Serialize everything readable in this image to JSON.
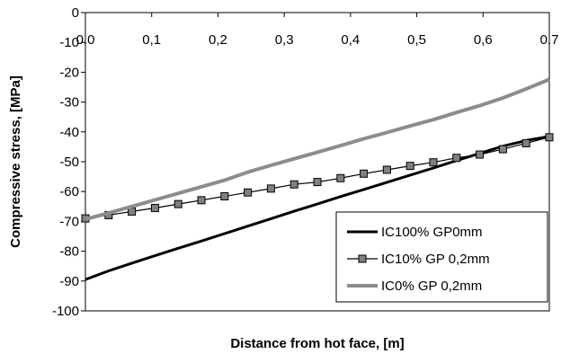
{
  "chart_data": {
    "type": "line",
    "title": "",
    "xlabel": "Distance from hot face, [m]",
    "ylabel": "Compressive stress, [MPa]",
    "xlim": [
      0,
      0.7
    ],
    "ylim": [
      -100,
      0
    ],
    "x_ticks": [
      "0,0",
      "0,1",
      "0,2",
      "0,3",
      "0,4",
      "0,5",
      "0,6",
      "0,7"
    ],
    "y_ticks": [
      "0",
      "-10",
      "-20",
      "-30",
      "-40",
      "-50",
      "-60",
      "-70",
      "-80",
      "-90",
      "-100"
    ],
    "grid": false,
    "legend_position": "bottom-right",
    "series": [
      {
        "name": "IC100% GP0mm",
        "color": "#000000",
        "marker": "none",
        "x": [
          0.0,
          0.035,
          0.07,
          0.105,
          0.14,
          0.175,
          0.21,
          0.245,
          0.28,
          0.315,
          0.35,
          0.385,
          0.42,
          0.455,
          0.49,
          0.525,
          0.56,
          0.595,
          0.63,
          0.665,
          0.7
        ],
        "y": [
          -89.5,
          -86.6,
          -84.0,
          -81.5,
          -79.0,
          -76.6,
          -74.1,
          -71.6,
          -69.1,
          -66.6,
          -64.2,
          -61.7,
          -59.3,
          -56.9,
          -54.5,
          -52.1,
          -49.6,
          -47.2,
          -44.8,
          -42.9,
          -41.5
        ]
      },
      {
        "name": "IC10% GP 0,2mm",
        "color": "#000000",
        "marker": "square",
        "marker_color": "#808080",
        "x": [
          0.0,
          0.035,
          0.07,
          0.105,
          0.14,
          0.175,
          0.21,
          0.245,
          0.28,
          0.315,
          0.35,
          0.385,
          0.42,
          0.455,
          0.49,
          0.525,
          0.56,
          0.595,
          0.63,
          0.665,
          0.7
        ],
        "y": [
          -69.0,
          -67.9,
          -66.7,
          -65.5,
          -64.2,
          -62.9,
          -61.6,
          -60.3,
          -59.0,
          -57.6,
          -56.8,
          -55.5,
          -54.0,
          -52.7,
          -51.4,
          -50.2,
          -48.7,
          -47.6,
          -45.8,
          -43.8,
          -41.8
        ]
      },
      {
        "name": "IC0% GP 0,2mm",
        "color": "#8c8c8c",
        "marker": "none",
        "x": [
          0.0,
          0.035,
          0.07,
          0.105,
          0.14,
          0.175,
          0.21,
          0.245,
          0.28,
          0.315,
          0.35,
          0.385,
          0.42,
          0.455,
          0.49,
          0.525,
          0.56,
          0.595,
          0.63,
          0.665,
          0.7
        ],
        "y": [
          -69.3,
          -67.2,
          -65.0,
          -62.8,
          -60.6,
          -58.4,
          -56.2,
          -53.5,
          -51.2,
          -49.0,
          -46.8,
          -44.6,
          -42.3,
          -40.2,
          -38.0,
          -35.9,
          -33.5,
          -31.2,
          -28.6,
          -25.6,
          -22.4
        ]
      }
    ]
  }
}
